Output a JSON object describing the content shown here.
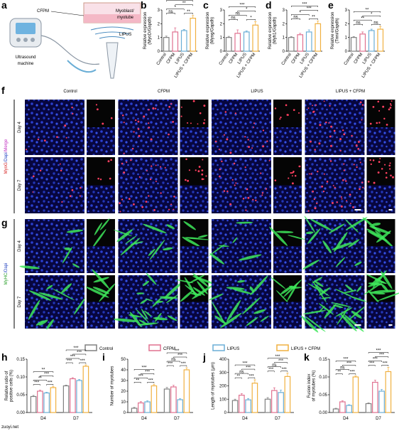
{
  "figure": {
    "panel_a": {
      "letter": "a",
      "cfpm": "CFPM",
      "cell": [
        "Myoblast/",
        "myotube"
      ],
      "lipus": "LIPUS",
      "machine": [
        "Ultrasound",
        "machine"
      ]
    },
    "panel_f": {
      "letter": "f",
      "columns": [
        "Control",
        "CFPM",
        "LIPUS",
        "LIPUS + CFPM"
      ],
      "rows": [
        "Day 4",
        "Day 7"
      ],
      "stain": [
        {
          "text": "MyoG",
          "color": "#d62728"
        },
        {
          "text": "/Dapi",
          "color": "#1f3fbf"
        },
        {
          "text": "/Merge",
          "color": "#c030c0"
        }
      ]
    },
    "panel_g": {
      "letter": "g",
      "rows": [
        "Day 4",
        "Day 7"
      ],
      "stain": [
        {
          "text": "MyHC",
          "color": "#2ca02c"
        },
        {
          "text": "/Dapi",
          "color": "#1f3fbf"
        }
      ]
    },
    "legend": [
      {
        "name": "Control",
        "color": "#808080"
      },
      {
        "name": "CFPM",
        "color": "#e0708f"
      },
      {
        "name": "LIPUS",
        "color": "#6aaed6"
      },
      {
        "name": "LIPUS + CFPM",
        "color": "#f0b040"
      }
    ],
    "watermark": "zuoyi.net"
  },
  "chart_data": [
    {
      "type": "bar",
      "letter": "b",
      "ylabel": [
        "Relative expression",
        "(MyoD/Gapdh)"
      ],
      "categories": [
        "Control",
        "CFPM",
        "LIPUS",
        "LIPUS + CFPM"
      ],
      "values": [
        1.0,
        1.4,
        1.5,
        2.4
      ],
      "errors": [
        0.1,
        0.3,
        0.08,
        0.2
      ],
      "colors": [
        "#808080",
        "#e0708f",
        "#6aaed6",
        "#f0b040"
      ],
      "ylim": [
        0,
        3
      ],
      "yticks": [
        0,
        1,
        2,
        3
      ],
      "significance": [
        "ns",
        "**",
        "*",
        "**",
        "***"
      ]
    },
    {
      "type": "bar",
      "letter": "c",
      "ylabel": [
        "Relative expression",
        "(Myog/Gapdh)"
      ],
      "categories": [
        "Control",
        "CFPM",
        "LIPUS",
        "LIPUS + CFPM"
      ],
      "values": [
        1.0,
        1.3,
        1.4,
        1.9
      ],
      "errors": [
        0.08,
        0.25,
        0.07,
        0.25
      ],
      "colors": [
        "#808080",
        "#e0708f",
        "#6aaed6",
        "#f0b040"
      ],
      "ylim": [
        0,
        3
      ],
      "yticks": [
        0,
        1,
        2,
        3
      ],
      "significance": [
        "ns",
        "*",
        "ns",
        "*",
        "***"
      ]
    },
    {
      "type": "bar",
      "letter": "d",
      "ylabel": [
        "Relative expression",
        "(Myh1/Gapdh)"
      ],
      "categories": [
        "Control",
        "CFPM",
        "LIPUS",
        "LIPUS + CFPM"
      ],
      "values": [
        1.0,
        1.2,
        1.4,
        2.0
      ],
      "errors": [
        0.06,
        0.1,
        0.15,
        0.2
      ],
      "colors": [
        "#808080",
        "#e0708f",
        "#6aaed6",
        "#f0b040"
      ],
      "ylim": [
        0,
        3
      ],
      "yticks": [
        0,
        1,
        2,
        3
      ],
      "significance": [
        "ns",
        "**",
        "*",
        "***",
        "***"
      ]
    },
    {
      "type": "bar",
      "letter": "e",
      "ylabel": [
        "Relative expression",
        "(Tnni/Gapdh)"
      ],
      "categories": [
        "Control",
        "CFPM",
        "LIPUS",
        "LIPUS + CFPM"
      ],
      "values": [
        1.0,
        1.25,
        1.5,
        1.6
      ],
      "errors": [
        0.06,
        0.15,
        0.1,
        0.2
      ],
      "colors": [
        "#808080",
        "#e0708f",
        "#6aaed6",
        "#f0b040"
      ],
      "ylim": [
        0,
        3
      ],
      "yticks": [
        0,
        1,
        2,
        3
      ],
      "significance": [
        "ns",
        "ns",
        "**",
        "*",
        "**"
      ]
    },
    {
      "type": "grouped_bar",
      "letter": "h",
      "ylabel": [
        "Relative ratio of",
        "positive cells (%)"
      ],
      "categories": [
        "D4",
        "D7"
      ],
      "series": [
        {
          "color": "#808080",
          "values": [
            0.045,
            0.075
          ],
          "errors": [
            0.003,
            0.002
          ]
        },
        {
          "color": "#e0708f",
          "values": [
            0.06,
            0.095
          ],
          "errors": [
            0.003,
            0.003
          ]
        },
        {
          "color": "#6aaed6",
          "values": [
            0.055,
            0.09
          ],
          "errors": [
            0.002,
            0.003
          ]
        },
        {
          "color": "#f0b040",
          "values": [
            0.07,
            0.13
          ],
          "errors": [
            0.003,
            0.004
          ]
        }
      ],
      "ylim": [
        0,
        0.15
      ],
      "yticks": [
        {
          "value": 0,
          "label": "0.00"
        },
        {
          "value": 0.05,
          "label": "0.05"
        },
        {
          "value": 0.1,
          "label": "0.10"
        },
        {
          "value": 0.15,
          "label": "0.15"
        }
      ],
      "significance": [
        [
          "***",
          "***",
          "**",
          "***",
          "**"
        ],
        [
          "***",
          "***",
          "***",
          "***",
          "***"
        ]
      ]
    },
    {
      "type": "grouped_bar",
      "letter": "i",
      "ylabel": [
        "Number of myotubes"
      ],
      "categories": [
        "D4",
        "D7"
      ],
      "series": [
        {
          "color": "#808080",
          "values": [
            4,
            22
          ],
          "errors": [
            0.8,
            1.5
          ]
        },
        {
          "color": "#e0708f",
          "values": [
            9,
            24
          ],
          "errors": [
            1.2,
            1.5
          ]
        },
        {
          "color": "#6aaed6",
          "values": [
            10,
            12
          ],
          "errors": [
            1,
            1
          ]
        },
        {
          "color": "#f0b040",
          "values": [
            25,
            40
          ],
          "errors": [
            1.5,
            2
          ]
        }
      ],
      "ylim": [
        0,
        50
      ],
      "yticks": [
        0,
        10,
        20,
        30,
        40,
        50
      ],
      "significance": [
        [
          "**",
          "***",
          "***",
          "***",
          "***"
        ],
        [
          "***",
          "***",
          "ns",
          "***",
          "***"
        ]
      ]
    },
    {
      "type": "grouped_bar",
      "letter": "j",
      "ylabel": [
        "Length of myotubes (μm)"
      ],
      "categories": [
        "D4",
        "D7"
      ],
      "series": [
        {
          "color": "#808080",
          "values": [
            90,
            100
          ],
          "errors": [
            10,
            12
          ]
        },
        {
          "color": "#e0708f",
          "values": [
            130,
            165
          ],
          "errors": [
            12,
            20
          ]
        },
        {
          "color": "#6aaed6",
          "values": [
            95,
            150
          ],
          "errors": [
            10,
            18
          ]
        },
        {
          "color": "#f0b040",
          "values": [
            220,
            270
          ],
          "errors": [
            25,
            25
          ]
        }
      ],
      "ylim": [
        0,
        400
      ],
      "yticks": [
        0,
        100,
        200,
        300,
        400
      ],
      "significance": [
        [
          "**",
          "***",
          "ns",
          "***",
          "***"
        ],
        [
          "***",
          "***",
          "ns",
          "***",
          "***"
        ]
      ]
    },
    {
      "type": "grouped_bar",
      "letter": "k",
      "ylabel": [
        "Fusion index",
        "of myotubes (%)"
      ],
      "categories": [
        "D4",
        "D7"
      ],
      "series": [
        {
          "color": "#808080",
          "values": [
            0.01,
            0.025
          ],
          "errors": [
            0.002,
            0.002
          ]
        },
        {
          "color": "#e0708f",
          "values": [
            0.03,
            0.085
          ],
          "errors": [
            0.003,
            0.006
          ]
        },
        {
          "color": "#6aaed6",
          "values": [
            0.02,
            0.06
          ],
          "errors": [
            0.002,
            0.005
          ]
        },
        {
          "color": "#f0b040",
          "values": [
            0.1,
            0.115
          ],
          "errors": [
            0.003,
            0.012
          ]
        }
      ],
      "ylim": [
        0,
        0.15
      ],
      "yticks": [
        {
          "value": 0,
          "label": "0.00"
        },
        {
          "value": 0.05,
          "label": "0.05"
        },
        {
          "value": 0.1,
          "label": "0.10"
        },
        {
          "value": 0.15,
          "label": "0.15"
        }
      ],
      "significance": [
        [
          "**",
          "***",
          "ns",
          "***",
          "***"
        ],
        [
          "***",
          "***",
          "***",
          "***",
          "***"
        ]
      ]
    }
  ]
}
